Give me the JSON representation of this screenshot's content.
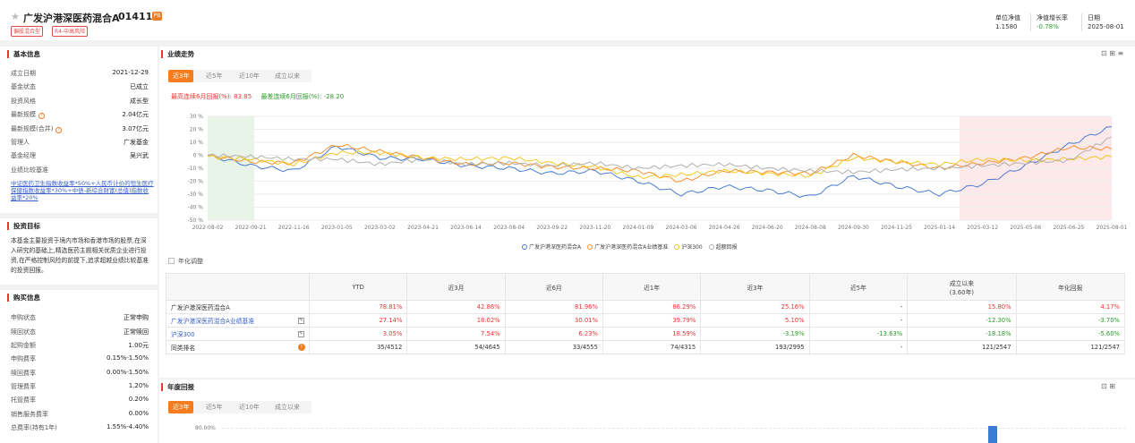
{
  "header": {
    "fund_name": "广发沪港深医药混合A",
    "fund_code": "014114",
    "badge": "PB",
    "tags": [
      "偏股混合型",
      "R4-中高风险"
    ],
    "nav": {
      "label": "单位净值",
      "value": "1.1580"
    },
    "growth": {
      "label": "净值增长率",
      "value": "-0.78%"
    },
    "date": {
      "label": "日期",
      "value": "2025-08-01"
    }
  },
  "basic_info": {
    "title": "基本信息",
    "rows": [
      {
        "k": "成立日期",
        "v": "2021-12-29"
      },
      {
        "k": "基金状态",
        "v": "已成立"
      },
      {
        "k": "投资风格",
        "v": "成长型"
      },
      {
        "k": "最新规模",
        "v": "2.04亿元"
      },
      {
        "k": "最新规模(合并)",
        "v": "3.07亿元"
      },
      {
        "k": "管理人",
        "v": "广发基金"
      },
      {
        "k": "基金经理",
        "v": "吴兴武"
      },
      {
        "k": "业绩比较基准",
        "v": ""
      }
    ],
    "benchmark": "中证医药卫生指数收益率*50%+人民币计价的恒生医疗保健指数收益率*30%+中债-新综合财富(总值)指数收益率*20%"
  },
  "invest_goal": {
    "title": "投资目标",
    "text": "本基金主要投资于境内市场和香港市场的股票,在深入研究的基础上,精选医药主题相关优质企业进行投资,在严格控制风险的前提下,追求超越业绩比较基准的投资回报。"
  },
  "purchase_info": {
    "title": "购买信息",
    "rows": [
      {
        "k": "申购状态",
        "v": "正常申购"
      },
      {
        "k": "赎回状态",
        "v": "正常赎回"
      },
      {
        "k": "起购金额",
        "v": "1.00元"
      },
      {
        "k": "申购费率",
        "v": "0.15%-1.50%"
      },
      {
        "k": "赎回费率",
        "v": "0.00%-1.50%"
      },
      {
        "k": "管理费率",
        "v": "1.20%"
      },
      {
        "k": "托管费率",
        "v": "0.20%"
      },
      {
        "k": "销售服务费率",
        "v": "0.00%"
      },
      {
        "k": "总费率(持有1年)",
        "v": "1.55%-4.40%"
      }
    ]
  },
  "performance": {
    "title": "业绩走势",
    "tabs": [
      "近3年",
      "近5年",
      "近10年",
      "成立以来"
    ],
    "max_drawup_label": "最高连续6月回报(%): 83.85",
    "max_drawdown_label": "最差连续6月回报(%): -28.20",
    "legend": [
      {
        "name": "广发沪港深医药混合A",
        "color": "#4a7bd0"
      },
      {
        "name": "广发沪港深医药混合A业绩基准",
        "color": "#f5912e"
      },
      {
        "name": "沪深300",
        "color": "#f3c623"
      },
      {
        "name": "超额回报",
        "color": "#b0b0b0"
      }
    ],
    "annualize_label": "年化调整"
  },
  "chart_data": {
    "type": "line",
    "x": [
      "2022-08-02",
      "2022-09-21",
      "2022-11-16",
      "2023-01-05",
      "2023-03-02",
      "2023-04-21",
      "2023-06-14",
      "2023-08-04",
      "2023-09-22",
      "2023-11-20",
      "2024-01-09",
      "2024-03-06",
      "2024-04-26",
      "2024-06-20",
      "2024-08-08",
      "2024-09-30",
      "2024-11-25",
      "2025-01-14",
      "2025-03-12",
      "2025-05-06",
      "2025-06-25",
      "2025-08-01"
    ],
    "y_ticks": [
      "30 %",
      "20 %",
      "10 %",
      "0 %",
      "-10 %",
      "-20 %",
      "-30 %",
      "-40 %",
      "-50 %"
    ],
    "ylim": [
      -50,
      30
    ],
    "series": [
      {
        "name": "广发沪港深医药混合A",
        "color": "#4a7bd0",
        "values": [
          0,
          -8,
          -12,
          7,
          -2,
          -3,
          -8,
          -10,
          -14,
          -12,
          -20,
          -30,
          -24,
          -27,
          -32,
          -16,
          -24,
          -30,
          -22,
          -8,
          8,
          22
        ]
      },
      {
        "name": "广发沪港深医药混合A业绩基准",
        "color": "#f5912e",
        "values": [
          0,
          -5,
          -6,
          8,
          3,
          -2,
          -7,
          -6,
          -9,
          -10,
          -12,
          -20,
          -12,
          -13,
          -14,
          0,
          -5,
          -10,
          -6,
          -2,
          6,
          5
        ]
      },
      {
        "name": "沪深300",
        "color": "#f3c623",
        "values": [
          -1,
          -3,
          -7,
          2,
          2,
          -2,
          -3,
          -2,
          -6,
          -9,
          -17,
          -15,
          -12,
          -14,
          -16,
          -2,
          -5,
          -7,
          -3,
          -4,
          -3,
          -1
        ]
      },
      {
        "name": "超额回报",
        "color": "#b0b0b0",
        "values": [
          0,
          -1,
          -3,
          -3,
          -7,
          -3,
          -7,
          -6,
          -8,
          -6,
          -10,
          -8,
          -7,
          -10,
          -12,
          -13,
          -11,
          -10,
          -8,
          -6,
          -4,
          14
        ]
      }
    ]
  },
  "returns_table": {
    "headers": [
      "",
      "YTD",
      "近3月",
      "近6月",
      "近1年",
      "近3年",
      "近5年",
      "成立以来\n(3.60年)",
      "年化回报"
    ],
    "rows": [
      {
        "name": "广发沪港深医药混合A",
        "cells": [
          "78.81%",
          "42.86%",
          "81.96%",
          "86.29%",
          "25.16%",
          "-",
          "15.80%",
          "4.17%"
        ]
      },
      {
        "name": "广发沪港深医药混合A业绩基准",
        "cells": [
          "27.14%",
          "18.02%",
          "30.01%",
          "39.79%",
          "5.10%",
          "-",
          "-12.30%",
          "-3.70%"
        ]
      },
      {
        "name": "沪深300",
        "cells": [
          "3.05%",
          "7.54%",
          "6.23%",
          "18.59%",
          "-3.19%",
          "-13.63%",
          "-18.18%",
          "-5.60%"
        ]
      },
      {
        "name": "同类排名",
        "cells": [
          "35/4512",
          "54/4645",
          "33/4555",
          "74/4315",
          "193/2995",
          "-",
          "121/2547",
          "121/2547"
        ]
      }
    ]
  },
  "annual_returns": {
    "title": "年度回报",
    "tabs": [
      "近3年",
      "近5年",
      "近10年",
      "成立以来"
    ],
    "y_tick": "80.00%"
  }
}
